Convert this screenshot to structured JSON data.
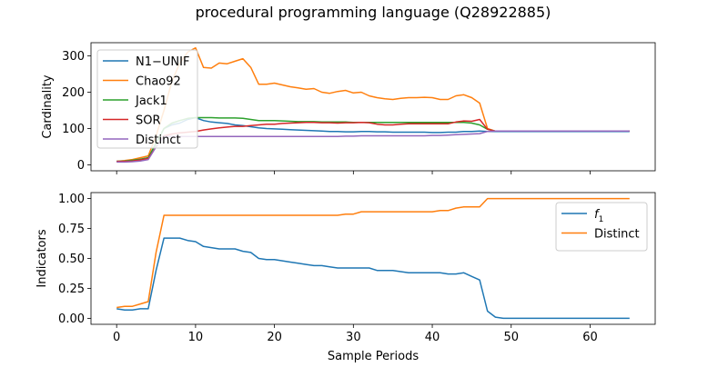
{
  "figure": {
    "title": "procedural programming language (Q28922885)"
  },
  "chart_data": [
    {
      "type": "line",
      "ylabel": "Cardinality",
      "xlabel": "",
      "xlim": [
        -3.25,
        68.25
      ],
      "ylim": [
        -16,
        336
      ],
      "xticks": [
        0,
        10,
        20,
        30,
        40,
        50,
        60
      ],
      "yticks": [
        0,
        100,
        200,
        300
      ],
      "show_x_tick_labels": false,
      "grid": false,
      "legend_position": "upper-left",
      "x": [
        0,
        1,
        2,
        3,
        4,
        5,
        6,
        7,
        8,
        9,
        10,
        11,
        12,
        13,
        14,
        15,
        16,
        17,
        18,
        19,
        20,
        21,
        22,
        23,
        24,
        25,
        26,
        27,
        28,
        29,
        30,
        31,
        32,
        33,
        34,
        35,
        36,
        37,
        38,
        39,
        40,
        41,
        42,
        43,
        44,
        45,
        46,
        47,
        48,
        49,
        50,
        51,
        52,
        53,
        54,
        55,
        56,
        57,
        58,
        59,
        60,
        61,
        62,
        63,
        64,
        65
      ],
      "series": [
        {
          "name": "N1−UNIF",
          "color": "#1f77b4",
          "values": [
            10,
            10,
            12,
            15,
            20,
            60,
            100,
            110,
            115,
            125,
            130,
            122,
            118,
            116,
            114,
            110,
            108,
            105,
            102,
            100,
            99,
            98,
            97,
            96,
            95,
            94,
            93,
            92,
            92,
            91,
            91,
            92,
            92,
            91,
            91,
            90,
            90,
            90,
            90,
            90,
            89,
            89,
            90,
            90,
            92,
            92,
            93,
            92,
            92,
            92,
            92,
            92,
            92,
            92,
            92,
            92,
            92,
            92,
            92,
            92,
            92,
            92,
            92,
            92,
            92,
            92
          ]
        },
        {
          "name": "Chao92",
          "color": "#ff7f0e",
          "values": [
            10,
            12,
            15,
            20,
            25,
            80,
            150,
            230,
            280,
            310,
            322,
            268,
            266,
            280,
            278,
            285,
            292,
            268,
            222,
            222,
            225,
            220,
            215,
            212,
            208,
            210,
            200,
            197,
            202,
            205,
            198,
            200,
            190,
            185,
            182,
            180,
            183,
            185,
            185,
            186,
            185,
            180,
            180,
            190,
            193,
            185,
            170,
            100,
            93,
            93,
            93,
            93,
            93,
            93,
            93,
            93,
            93,
            93,
            93,
            93,
            93,
            93,
            93,
            93,
            93,
            93
          ]
        },
        {
          "name": "Jack1",
          "color": "#2ca02c",
          "values": [
            10,
            11,
            13,
            16,
            20,
            60,
            100,
            115,
            122,
            128,
            130,
            130,
            130,
            129,
            129,
            129,
            128,
            125,
            122,
            122,
            122,
            121,
            120,
            119,
            119,
            119,
            118,
            118,
            118,
            118,
            117,
            117,
            117,
            117,
            117,
            117,
            117,
            117,
            117,
            117,
            117,
            117,
            117,
            117,
            117,
            115,
            110,
            98,
            93,
            93,
            93,
            93,
            93,
            93,
            93,
            93,
            93,
            93,
            93,
            93,
            93,
            93,
            93,
            93,
            93,
            93
          ]
        },
        {
          "name": "SOR",
          "color": "#d62728",
          "values": [
            10,
            10,
            11,
            14,
            18,
            50,
            80,
            85,
            88,
            90,
            92,
            96,
            99,
            102,
            104,
            106,
            106,
            108,
            110,
            112,
            112,
            114,
            115,
            116,
            117,
            117,
            116,
            116,
            115,
            116,
            116,
            117,
            116,
            112,
            110,
            110,
            112,
            113,
            113,
            113,
            113,
            113,
            113,
            118,
            121,
            120,
            125,
            98,
            93,
            93,
            93,
            93,
            93,
            93,
            93,
            93,
            93,
            93,
            93,
            93,
            93,
            93,
            93,
            93,
            93,
            93
          ]
        },
        {
          "name": "Distinct",
          "color": "#9467bd",
          "values": [
            8,
            8,
            9,
            11,
            15,
            50,
            78,
            78,
            78,
            78,
            78,
            78,
            78,
            78,
            78,
            78,
            78,
            78,
            78,
            78,
            78,
            78,
            78,
            78,
            78,
            78,
            78,
            78,
            78,
            79,
            79,
            80,
            80,
            80,
            80,
            80,
            80,
            80,
            80,
            80,
            81,
            81,
            82,
            83,
            84,
            85,
            86,
            92,
            93,
            93,
            93,
            93,
            93,
            93,
            93,
            93,
            93,
            93,
            93,
            93,
            93,
            93,
            93,
            93,
            93,
            93
          ]
        }
      ]
    },
    {
      "type": "line",
      "ylabel": "Indicators",
      "xlabel": "Sample Periods",
      "xlim": [
        -3.25,
        68.25
      ],
      "ylim": [
        -0.05,
        1.05
      ],
      "xticks": [
        0,
        10,
        20,
        30,
        40,
        50,
        60
      ],
      "yticks": [
        0.0,
        0.25,
        0.5,
        0.75,
        1.0
      ],
      "ytick_labels": [
        "0.00",
        "0.25",
        "0.50",
        "0.75",
        "1.00"
      ],
      "show_x_tick_labels": true,
      "grid": false,
      "legend_position": "upper-right",
      "x": [
        0,
        1,
        2,
        3,
        4,
        5,
        6,
        7,
        8,
        9,
        10,
        11,
        12,
        13,
        14,
        15,
        16,
        17,
        18,
        19,
        20,
        21,
        22,
        23,
        24,
        25,
        26,
        27,
        28,
        29,
        30,
        31,
        32,
        33,
        34,
        35,
        36,
        37,
        38,
        39,
        40,
        41,
        42,
        43,
        44,
        45,
        46,
        47,
        48,
        49,
        50,
        51,
        52,
        53,
        54,
        55,
        56,
        57,
        58,
        59,
        60,
        61,
        62,
        63,
        64,
        65
      ],
      "series": [
        {
          "name": "f1",
          "label_main": "f",
          "label_sub": "1",
          "color": "#1f77b4",
          "values": [
            0.08,
            0.07,
            0.07,
            0.08,
            0.08,
            0.4,
            0.67,
            0.67,
            0.67,
            0.65,
            0.64,
            0.6,
            0.59,
            0.58,
            0.58,
            0.58,
            0.56,
            0.55,
            0.5,
            0.49,
            0.49,
            0.48,
            0.47,
            0.46,
            0.45,
            0.44,
            0.44,
            0.43,
            0.42,
            0.42,
            0.42,
            0.42,
            0.42,
            0.4,
            0.4,
            0.4,
            0.39,
            0.38,
            0.38,
            0.38,
            0.38,
            0.38,
            0.37,
            0.37,
            0.38,
            0.35,
            0.32,
            0.06,
            0.01,
            0.0,
            0.0,
            0.0,
            0.0,
            0.0,
            0.0,
            0.0,
            0.0,
            0.0,
            0.0,
            0.0,
            0.0,
            0.0,
            0.0,
            0.0,
            0.0,
            0.0
          ]
        },
        {
          "name": "Distinct",
          "color": "#ff7f0e",
          "values": [
            0.09,
            0.1,
            0.1,
            0.12,
            0.14,
            0.55,
            0.86,
            0.86,
            0.86,
            0.86,
            0.86,
            0.86,
            0.86,
            0.86,
            0.86,
            0.86,
            0.86,
            0.86,
            0.86,
            0.86,
            0.86,
            0.86,
            0.86,
            0.86,
            0.86,
            0.86,
            0.86,
            0.86,
            0.86,
            0.87,
            0.87,
            0.89,
            0.89,
            0.89,
            0.89,
            0.89,
            0.89,
            0.89,
            0.89,
            0.89,
            0.89,
            0.9,
            0.9,
            0.92,
            0.93,
            0.93,
            0.93,
            1.0,
            1.0,
            1.0,
            1.0,
            1.0,
            1.0,
            1.0,
            1.0,
            1.0,
            1.0,
            1.0,
            1.0,
            1.0,
            1.0,
            1.0,
            1.0,
            1.0,
            1.0,
            1.0
          ]
        }
      ]
    }
  ]
}
